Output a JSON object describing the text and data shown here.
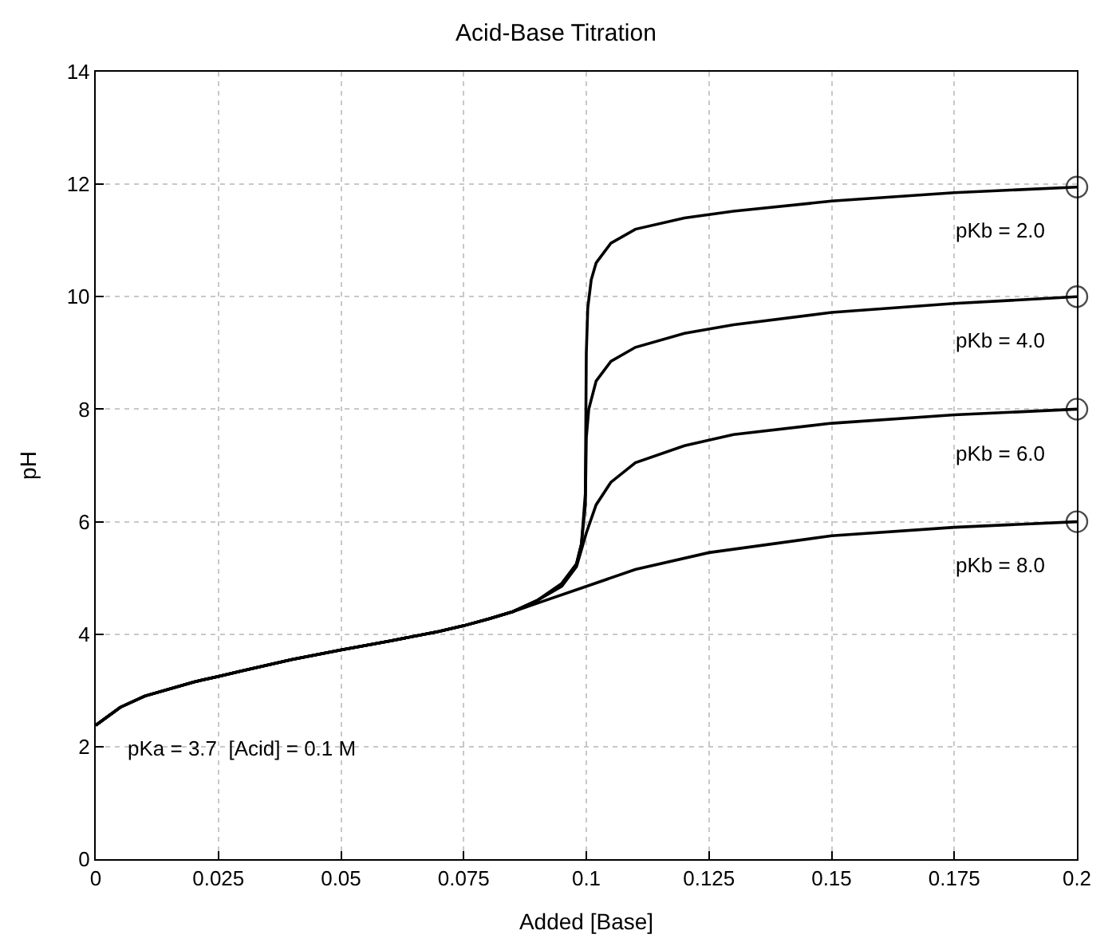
{
  "chart_data": {
    "type": "line",
    "title": "Acid-Base Titration",
    "xlabel": "Added [Base]",
    "ylabel": "pH",
    "xlim": [
      0,
      0.2
    ],
    "xticks": [
      0,
      0.025,
      0.05,
      0.075,
      0.1,
      0.125,
      0.15,
      0.175,
      0.2
    ],
    "ylim": [
      0,
      14
    ],
    "yticks": [
      0,
      2,
      4,
      6,
      8,
      10,
      12,
      14
    ],
    "grid": true,
    "legend": false,
    "line_style": "solid",
    "annotations": [
      "pKa = 3.7  [Acid] = 0.1 M"
    ],
    "series": [
      {
        "name": "pKb = 2.0",
        "color": "#000000",
        "x": [
          0,
          0.005,
          0.01,
          0.02,
          0.025,
          0.03,
          0.04,
          0.05,
          0.06,
          0.07,
          0.075,
          0.08,
          0.085,
          0.09,
          0.095,
          0.098,
          0.099,
          0.0998,
          0.1,
          0.1003,
          0.101,
          0.102,
          0.105,
          0.11,
          0.12,
          0.13,
          0.15,
          0.175,
          0.2
        ],
        "values": [
          2.38,
          2.7,
          2.9,
          3.15,
          3.25,
          3.35,
          3.55,
          3.72,
          3.88,
          4.05,
          4.15,
          4.27,
          4.4,
          4.6,
          4.9,
          5.25,
          5.6,
          6.5,
          9.0,
          9.8,
          10.3,
          10.6,
          10.95,
          11.2,
          11.4,
          11.52,
          11.7,
          11.85,
          11.95
        ]
      },
      {
        "name": "pKb = 4.0",
        "color": "#000000",
        "x": [
          0,
          0.005,
          0.01,
          0.02,
          0.025,
          0.03,
          0.04,
          0.05,
          0.06,
          0.07,
          0.075,
          0.08,
          0.085,
          0.09,
          0.095,
          0.098,
          0.099,
          0.0998,
          0.1,
          0.1005,
          0.102,
          0.105,
          0.11,
          0.12,
          0.13,
          0.15,
          0.175,
          0.2
        ],
        "values": [
          2.38,
          2.7,
          2.9,
          3.15,
          3.25,
          3.35,
          3.55,
          3.72,
          3.88,
          4.05,
          4.15,
          4.27,
          4.4,
          4.6,
          4.9,
          5.25,
          5.6,
          6.3,
          7.5,
          8.0,
          8.5,
          8.85,
          9.1,
          9.35,
          9.5,
          9.72,
          9.88,
          10.0
        ]
      },
      {
        "name": "pKb = 6.0",
        "color": "#000000",
        "x": [
          0,
          0.005,
          0.01,
          0.02,
          0.025,
          0.03,
          0.04,
          0.05,
          0.06,
          0.07,
          0.075,
          0.08,
          0.085,
          0.09,
          0.095,
          0.098,
          0.1,
          0.102,
          0.105,
          0.11,
          0.12,
          0.13,
          0.15,
          0.175,
          0.2
        ],
        "values": [
          2.38,
          2.7,
          2.9,
          3.15,
          3.25,
          3.35,
          3.55,
          3.72,
          3.88,
          4.05,
          4.15,
          4.27,
          4.4,
          4.6,
          4.85,
          5.2,
          5.8,
          6.3,
          6.7,
          7.05,
          7.35,
          7.55,
          7.75,
          7.9,
          8.0
        ]
      },
      {
        "name": "pKb = 8.0",
        "color": "#000000",
        "x": [
          0,
          0.005,
          0.01,
          0.02,
          0.025,
          0.03,
          0.04,
          0.05,
          0.06,
          0.07,
          0.075,
          0.08,
          0.085,
          0.09,
          0.1,
          0.11,
          0.125,
          0.15,
          0.175,
          0.2
        ],
        "values": [
          2.38,
          2.7,
          2.9,
          3.15,
          3.25,
          3.35,
          3.55,
          3.72,
          3.88,
          4.05,
          4.15,
          4.27,
          4.4,
          4.55,
          4.85,
          5.15,
          5.45,
          5.75,
          5.9,
          6.0
        ]
      },
      {
        "type": "scatter",
        "marker": "circle",
        "color": "#000000",
        "x": [
          0.2,
          0.2,
          0.2,
          0.2
        ],
        "values": [
          11.95,
          10.0,
          8.0,
          6.0
        ]
      }
    ]
  }
}
